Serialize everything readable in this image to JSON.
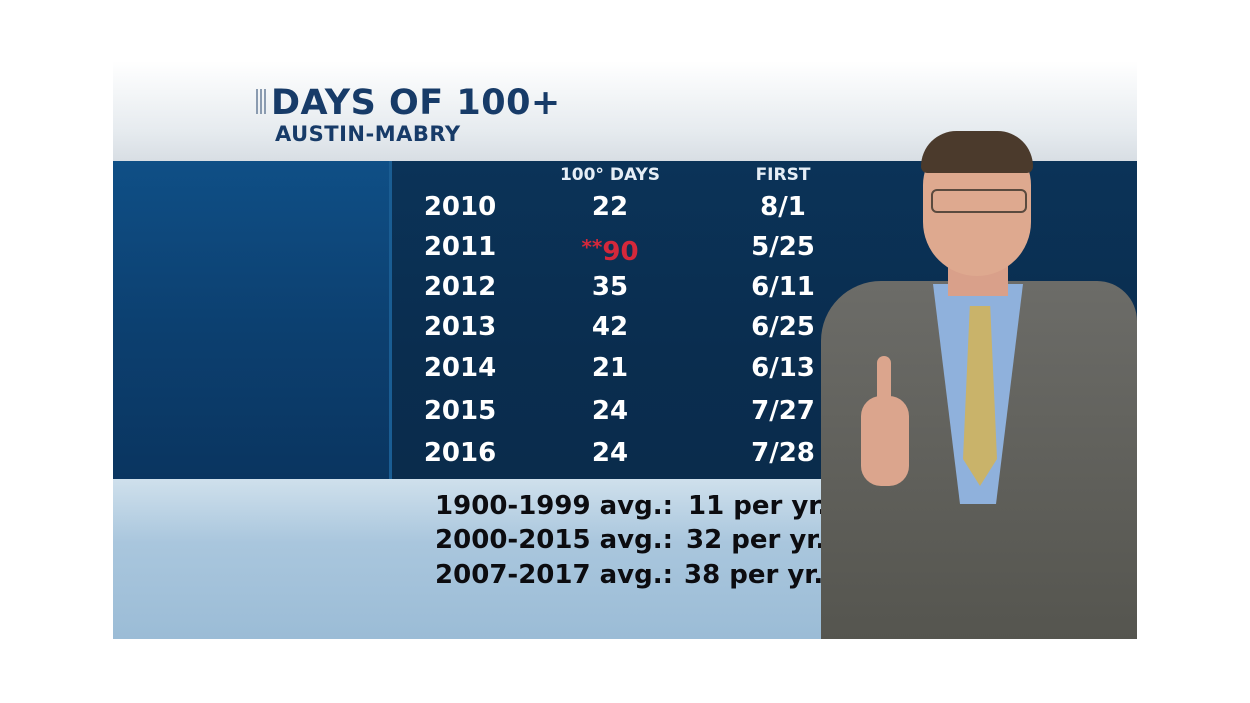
{
  "header": {
    "title": "DAYS OF 100+",
    "subtitle": "AUSTIN-MABRY"
  },
  "table": {
    "columns": {
      "days": "100° DAYS",
      "first": "FIRST"
    },
    "rows": [
      {
        "year": "2010",
        "days": "22",
        "first": "8/1"
      },
      {
        "year": "2011",
        "days_prefix": "**",
        "days": "90",
        "first": "5/25"
      },
      {
        "year": "2012",
        "days": "35",
        "first": "6/11"
      },
      {
        "year": "2013",
        "days": "42",
        "first": "6/25"
      },
      {
        "year": "2014",
        "days": "21",
        "first": "6/13"
      },
      {
        "year": "2015",
        "days": "24",
        "first": "7/27"
      },
      {
        "year": "2016",
        "days": "24",
        "first": "7/28"
      }
    ],
    "highlight_color": "#d4283b"
  },
  "averages": [
    {
      "label": "1900-1999 avg.:",
      "value": "11 per yr."
    },
    {
      "label": "2000-2015 avg.:",
      "value": "32 per yr."
    },
    {
      "label": "2007-2017 avg.:",
      "value": "38 per yr."
    }
  ],
  "colors": {
    "title": "#173b68",
    "panel_blue": "#0c3f6f",
    "averages_band": "#a9c6dd"
  }
}
